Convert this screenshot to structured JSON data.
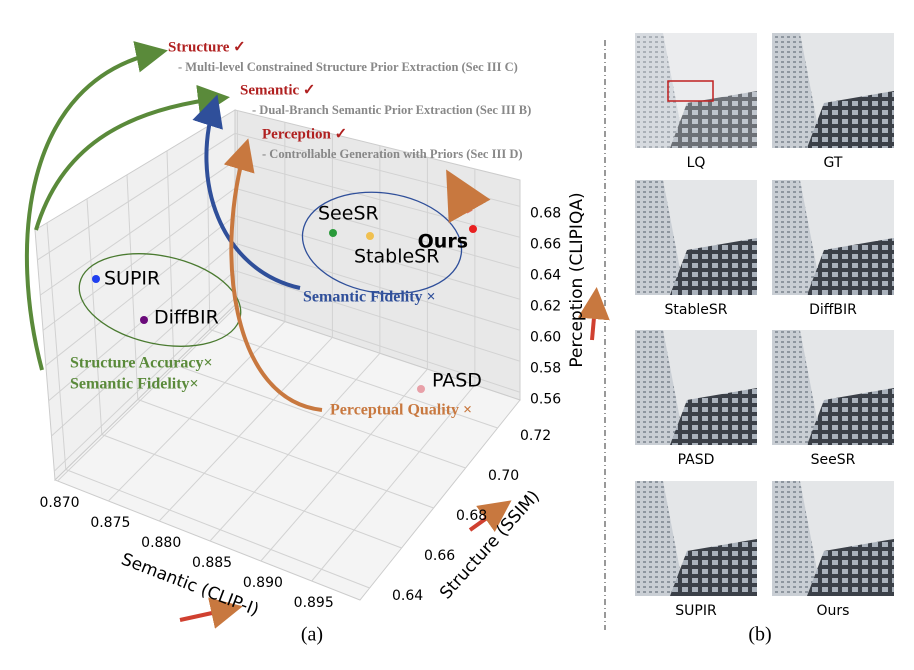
{
  "panel_a": {
    "annotations": [
      {
        "title": "Structure ✓",
        "subtitle": "- Multi-level Constrained Structure Prior Extraction (Sec III C)"
      },
      {
        "title": "Semantic ✓",
        "subtitle": "- Dual-Branch Semantic Prior Extraction (Sec III B)"
      },
      {
        "title": "Perception ✓",
        "subtitle": "- Controllable Generation with Priors (Sec III D)"
      }
    ],
    "failures": {
      "blue": "Semantic Fidelity ×",
      "green": [
        "Structure Accuracy×",
        "Semantic Fidelity×"
      ],
      "orange": "Perceptual Quality ×"
    },
    "points": [
      "SUPIR",
      "DiffBIR",
      "SeeSR",
      "StableSR",
      "Ours",
      "PASD"
    ],
    "axes": {
      "x": {
        "label": "Semantic (CLIP-I)",
        "ticks": [
          "0.870",
          "0.875",
          "0.880",
          "0.885",
          "0.890",
          "0.895"
        ]
      },
      "y": {
        "label": "Structure (SSIM)",
        "ticks": [
          "0.64",
          "0.66",
          "0.68",
          "0.70",
          "0.72"
        ]
      },
      "z": {
        "label": "Perception (CLIPIQA)",
        "ticks": [
          "0.56",
          "0.58",
          "0.60",
          "0.62",
          "0.64",
          "0.66",
          "0.68"
        ]
      }
    },
    "caption": "(a)"
  },
  "panel_b": {
    "images": [
      "LQ",
      "GT",
      "StableSR",
      "DiffBIR",
      "PASD",
      "SeeSR",
      "SUPIR",
      "Ours"
    ],
    "caption": "(b)"
  }
}
